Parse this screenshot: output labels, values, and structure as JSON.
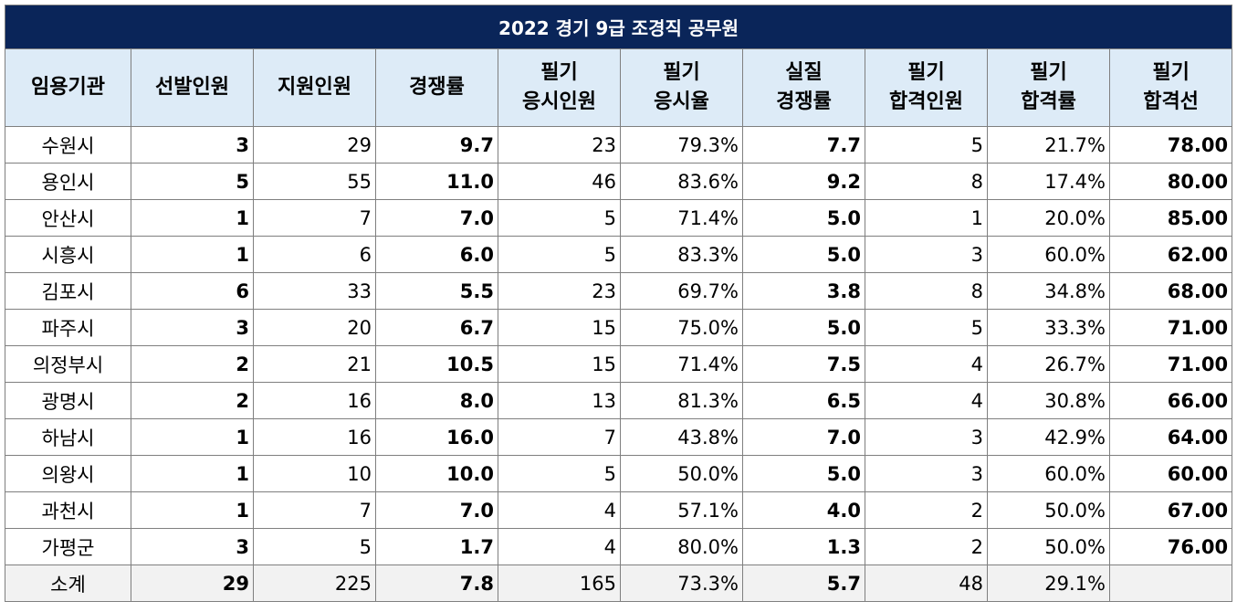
{
  "title": "2022 경기 9급 조경직  공무원",
  "headers": [
    "임용기관",
    "선발인원",
    "지원인원",
    "경쟁률",
    "필기\n응시인원",
    "필기\n응시율",
    "실질\n경쟁률",
    "필기\n합격인원",
    "필기\n합격률",
    "필기\n합격선"
  ],
  "rows": [
    [
      "수원시",
      "3",
      "29",
      "9.7",
      "23",
      "79.3%",
      "7.7",
      "5",
      "21.7%",
      "78.00"
    ],
    [
      "용인시",
      "5",
      "55",
      "11.0",
      "46",
      "83.6%",
      "9.2",
      "8",
      "17.4%",
      "80.00"
    ],
    [
      "안산시",
      "1",
      "7",
      "7.0",
      "5",
      "71.4%",
      "5.0",
      "1",
      "20.0%",
      "85.00"
    ],
    [
      "시흥시",
      "1",
      "6",
      "6.0",
      "5",
      "83.3%",
      "5.0",
      "3",
      "60.0%",
      "62.00"
    ],
    [
      "김포시",
      "6",
      "33",
      "5.5",
      "23",
      "69.7%",
      "3.8",
      "8",
      "34.8%",
      "68.00"
    ],
    [
      "파주시",
      "3",
      "20",
      "6.7",
      "15",
      "75.0%",
      "5.0",
      "5",
      "33.3%",
      "71.00"
    ],
    [
      "의정부시",
      "2",
      "21",
      "10.5",
      "15",
      "71.4%",
      "7.5",
      "4",
      "26.7%",
      "71.00"
    ],
    [
      "광명시",
      "2",
      "16",
      "8.0",
      "13",
      "81.3%",
      "6.5",
      "4",
      "30.8%",
      "66.00"
    ],
    [
      "하남시",
      "1",
      "16",
      "16.0",
      "7",
      "43.8%",
      "7.0",
      "3",
      "42.9%",
      "64.00"
    ],
    [
      "의왕시",
      "1",
      "10",
      "10.0",
      "5",
      "50.0%",
      "5.0",
      "3",
      "60.0%",
      "60.00"
    ],
    [
      "과천시",
      "1",
      "7",
      "7.0",
      "4",
      "57.1%",
      "4.0",
      "2",
      "50.0%",
      "67.00"
    ],
    [
      "가평군",
      "3",
      "5",
      "1.7",
      "4",
      "80.0%",
      "1.3",
      "2",
      "50.0%",
      "76.00"
    ]
  ],
  "total": [
    "소계",
    "29",
    "225",
    "7.8",
    "165",
    "73.3%",
    "5.7",
    "48",
    "29.1%",
    ""
  ]
}
